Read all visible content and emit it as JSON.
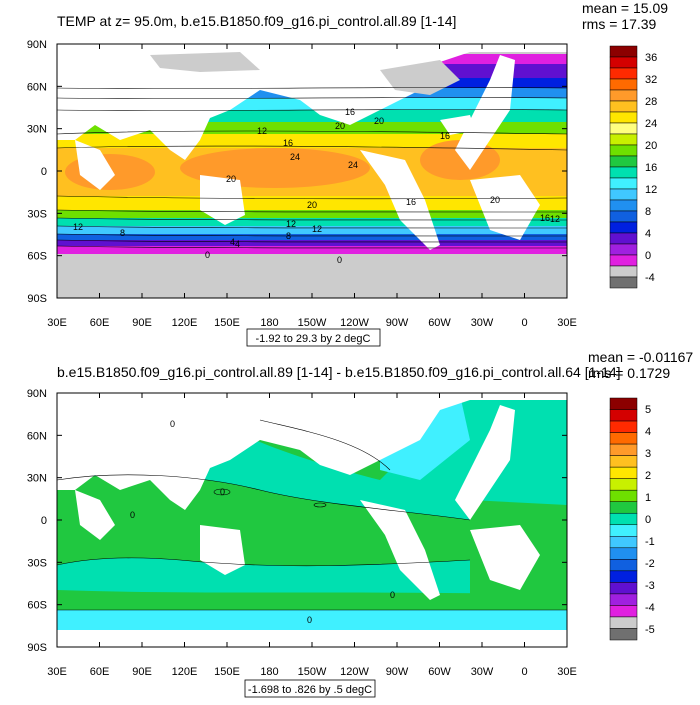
{
  "chart_data": [
    {
      "type": "heatmap",
      "title": "TEMP at z=  95.0m, b.e15.B1850.f09_g16.pi_control.all.89 [1-14]",
      "stats": {
        "mean": "mean = 15.09",
        "rms": "rms = 17.39"
      },
      "range_label": "-1.92 to 29.3 by 2 degC",
      "x_ticks": [
        "30E",
        "60E",
        "90E",
        "120E",
        "150E",
        "180",
        "150W",
        "120W",
        "90W",
        "60W",
        "30W",
        "0",
        "30E"
      ],
      "y_ticks": [
        "90N",
        "60N",
        "30N",
        "0",
        "30S",
        "60S",
        "90S"
      ],
      "colorbar": {
        "labels": [
          "36",
          "32",
          "28",
          "24",
          "20",
          "16",
          "12",
          "8",
          "4",
          "0",
          "-4"
        ],
        "colors": [
          "#8c0000",
          "#d40000",
          "#ff2a00",
          "#ff6a00",
          "#ff9a2a",
          "#ffc020",
          "#ffe600",
          "#ffff80",
          "#c8f000",
          "#6ee000",
          "#20c840",
          "#00e0b0",
          "#40f0ff",
          "#40c8ff",
          "#2090f0",
          "#1060e0",
          "#0020e0",
          "#6010d0",
          "#a020e0",
          "#e020e0",
          "#cccccc",
          "#707070"
        ]
      },
      "contour_labels": [
        "12",
        "16",
        "20",
        "24",
        "20",
        "16",
        "12",
        "8",
        "4",
        "0",
        "12",
        "16",
        "20",
        "24",
        "20",
        "16",
        "12",
        "8",
        "4",
        "0",
        "20",
        "16",
        "12"
      ]
    },
    {
      "type": "heatmap",
      "title": "b.e15.B1850.f09_g16.pi_control.all.89 [1-14] - b.e15.B1850.f09_g16.pi_control.all.64 [1-14]",
      "stats": {
        "mean": "mean = -0.01167",
        "rms": "rms = 0.1729"
      },
      "range_label": "-1.698 to .826 by .5 degC",
      "x_ticks": [
        "30E",
        "60E",
        "90E",
        "120E",
        "150E",
        "180",
        "150W",
        "120W",
        "90W",
        "60W",
        "30W",
        "0",
        "30E"
      ],
      "y_ticks": [
        "90N",
        "60N",
        "30N",
        "0",
        "30S",
        "60S",
        "90S"
      ],
      "colorbar": {
        "labels": [
          "5",
          "4",
          "3",
          "2",
          "1",
          "0",
          "-1",
          "-2",
          "-3",
          "-4",
          "-5"
        ],
        "colors": [
          "#8c0000",
          "#d40000",
          "#ff2a00",
          "#ff6a00",
          "#ff9a2a",
          "#ffc020",
          "#ffe600",
          "#c8f000",
          "#6ee000",
          "#20c840",
          "#00e0b0",
          "#40f0ff",
          "#40c8ff",
          "#2090f0",
          "#1060e0",
          "#0020e0",
          "#6010d0",
          "#a020e0",
          "#e020e0",
          "#cccccc",
          "#707070"
        ]
      },
      "contour_labels": [
        "0",
        "0",
        "0",
        "0",
        "0"
      ]
    }
  ]
}
